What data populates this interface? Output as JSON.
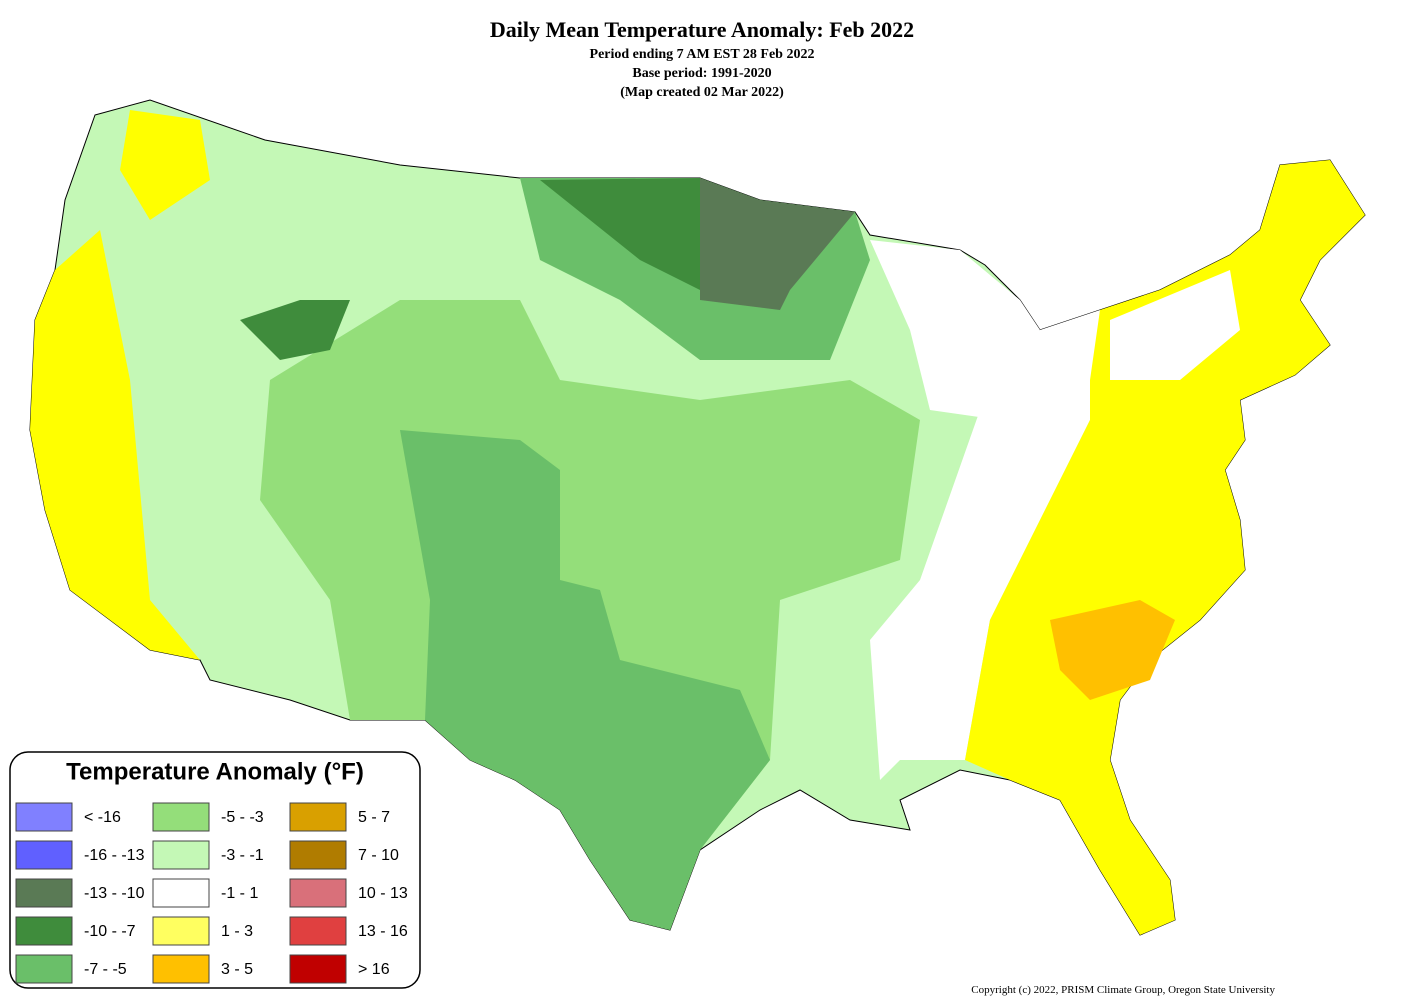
{
  "header": {
    "title": "Daily Mean Temperature Anomaly: Feb 2022",
    "lines": [
      "Period ending 7 AM EST 28 Feb 2022",
      "Base period: 1991-2020",
      "(Map created 02 Mar 2022)"
    ]
  },
  "legend": {
    "title": "Temperature Anomaly (°F)",
    "items": [
      {
        "label": "< -16",
        "color": "#8080ff"
      },
      {
        "label": "-16 - -13",
        "color": "#6060ff"
      },
      {
        "label": "-13 - -10",
        "color": "#5a7a55"
      },
      {
        "label": "-10 - -7",
        "color": "#3f8c3c"
      },
      {
        "label": "-7 - -5",
        "color": "#6abf69"
      },
      {
        "label": "-5 - -3",
        "color": "#94de7a"
      },
      {
        "label": "-3 - -1",
        "color": "#c4f8b6"
      },
      {
        "label": "-1 - 1",
        "color": "#ffffff"
      },
      {
        "label": "1 - 3",
        "color": "#ffff60"
      },
      {
        "label": "3 - 5",
        "color": "#ffc000"
      },
      {
        "label": "5 - 7",
        "color": "#d9a000"
      },
      {
        "label": "7 - 10",
        "color": "#b07c00"
      },
      {
        "label": "10 - 13",
        "color": "#d9707a"
      },
      {
        "label": "13 - 16",
        "color": "#e04040"
      },
      {
        "label": "> 16",
        "color": "#c00000"
      }
    ]
  },
  "footer": {
    "copyright": "Copyright (c) 2022, PRISM Climate Group, Oregon State University"
  }
}
